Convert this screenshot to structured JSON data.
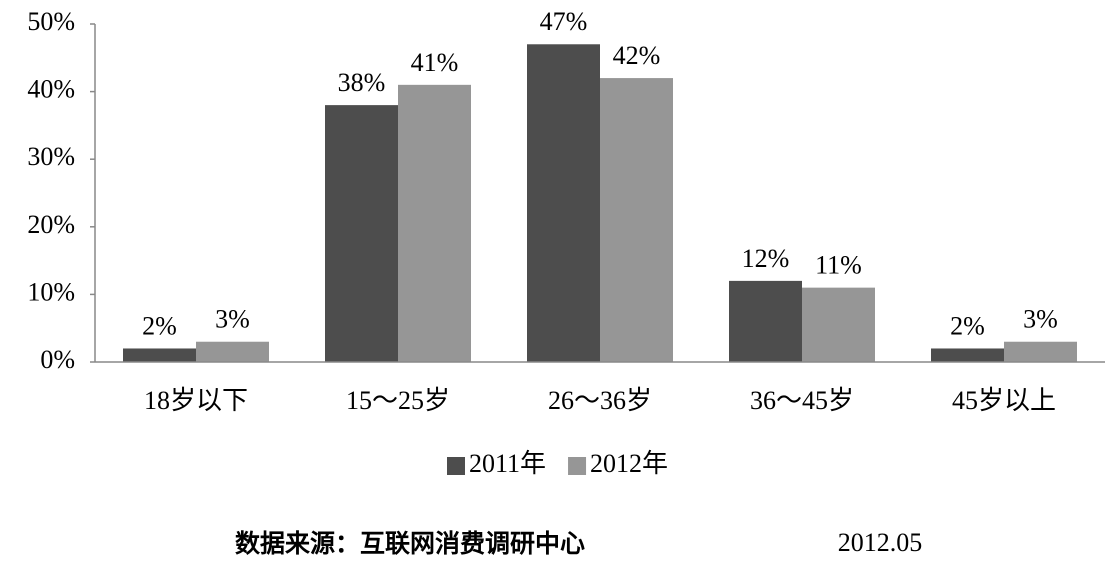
{
  "chart_data": {
    "type": "bar",
    "categories": [
      "18岁以下",
      "15～25岁",
      "26～36岁",
      "36～45岁",
      "45岁以上"
    ],
    "series": [
      {
        "name": "2011年",
        "color": "#4d4d4d",
        "values": [
          2,
          38,
          47,
          12,
          2
        ],
        "value_labels": [
          "2%",
          "38%",
          "47%",
          "12%",
          "2%"
        ]
      },
      {
        "name": "2012年",
        "color": "#969696",
        "values": [
          3,
          41,
          42,
          11,
          3
        ],
        "value_labels": [
          "3%",
          "41%",
          "42%",
          "11%",
          "3%"
        ]
      }
    ],
    "ylim": [
      0,
      50
    ],
    "yticks": [
      {
        "value": 0,
        "label": "0%"
      },
      {
        "value": 10,
        "label": "10%"
      },
      {
        "value": 20,
        "label": "20%"
      },
      {
        "value": 30,
        "label": "30%"
      },
      {
        "value": 40,
        "label": "40%"
      },
      {
        "value": 50,
        "label": "50%"
      }
    ],
    "grid": false,
    "legend": "bottom",
    "source": "数据来源：互联网消费调研中心",
    "date": "2012.05"
  }
}
